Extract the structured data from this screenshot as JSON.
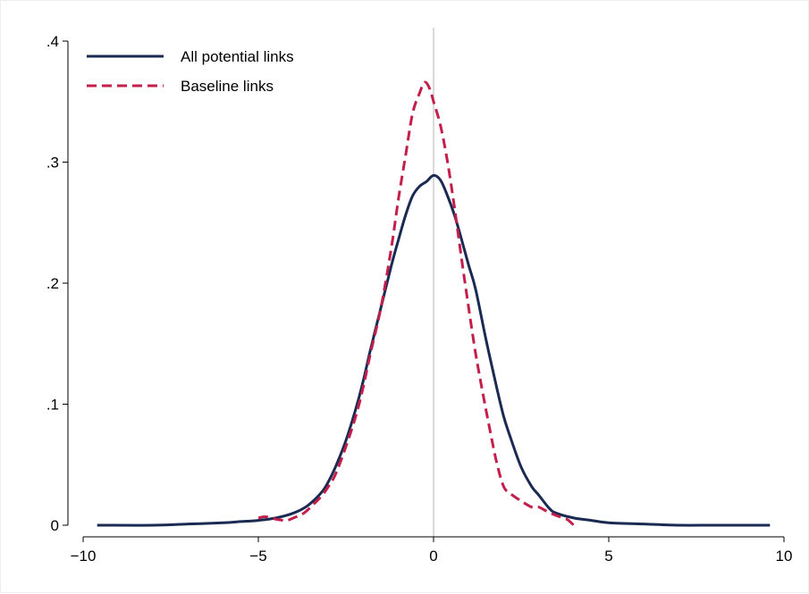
{
  "chart_data": {
    "type": "line",
    "title": "",
    "xlabel": "",
    "ylabel": "",
    "xlim": [
      -10,
      10
    ],
    "ylim": [
      0,
      0.4
    ],
    "x_ticks": [
      {
        "value": -10,
        "label": "−10"
      },
      {
        "value": -5,
        "label": "−5"
      },
      {
        "value": 0,
        "label": "0"
      },
      {
        "value": 5,
        "label": "5"
      },
      {
        "value": 10,
        "label": "10"
      }
    ],
    "y_ticks": [
      {
        "value": 0,
        "label": "0"
      },
      {
        "value": 0.1,
        "label": ".1"
      },
      {
        "value": 0.2,
        "label": ".2"
      },
      {
        "value": 0.3,
        "label": ".3"
      },
      {
        "value": 0.4,
        "label": ".4"
      }
    ],
    "reference_line_x": 0,
    "grid": false,
    "legend_position": "top-left",
    "series": [
      {
        "name": "All potential links",
        "color": "#1a2a52",
        "style": "solid",
        "x": [
          -9.6,
          -8,
          -7,
          -6,
          -5.5,
          -5,
          -4.5,
          -4,
          -3.6,
          -3.2,
          -3.0,
          -2.8,
          -2.5,
          -2.2,
          -2.0,
          -1.8,
          -1.5,
          -1.2,
          -1.0,
          -0.8,
          -0.6,
          -0.4,
          -0.2,
          0,
          0.2,
          0.4,
          0.6,
          0.8,
          1.0,
          1.2,
          1.5,
          1.8,
          2.0,
          2.2,
          2.5,
          2.8,
          3.0,
          3.3,
          3.5,
          4.0,
          4.5,
          5,
          6,
          7,
          8,
          9.6
        ],
        "y": [
          0.0,
          0.0,
          0.001,
          0.002,
          0.003,
          0.004,
          0.006,
          0.01,
          0.016,
          0.027,
          0.036,
          0.048,
          0.07,
          0.098,
          0.12,
          0.145,
          0.18,
          0.215,
          0.236,
          0.256,
          0.272,
          0.28,
          0.284,
          0.289,
          0.285,
          0.272,
          0.256,
          0.236,
          0.215,
          0.195,
          0.153,
          0.114,
          0.09,
          0.072,
          0.048,
          0.032,
          0.025,
          0.014,
          0.01,
          0.006,
          0.004,
          0.002,
          0.001,
          0.0,
          0.0,
          0.0
        ]
      },
      {
        "name": "Baseline links",
        "color": "#c41e4a",
        "style": "dashed",
        "x": [
          -5.0,
          -4.8,
          -4.5,
          -4.2,
          -4.0,
          -3.7,
          -3.4,
          -3.2,
          -3.0,
          -2.8,
          -2.5,
          -2.2,
          -2.0,
          -1.8,
          -1.5,
          -1.2,
          -1.0,
          -0.8,
          -0.6,
          -0.4,
          -0.25,
          -0.1,
          0,
          0.2,
          0.4,
          0.6,
          0.8,
          1.0,
          1.2,
          1.4,
          1.6,
          1.8,
          2.0,
          2.2,
          2.5,
          2.8,
          3.0,
          3.2,
          3.5,
          3.8,
          4.0
        ],
        "y": [
          0.006,
          0.007,
          0.005,
          0.004,
          0.006,
          0.01,
          0.018,
          0.024,
          0.032,
          0.042,
          0.065,
          0.092,
          0.115,
          0.142,
          0.18,
          0.23,
          0.27,
          0.305,
          0.34,
          0.357,
          0.366,
          0.36,
          0.35,
          0.33,
          0.3,
          0.262,
          0.22,
          0.18,
          0.142,
          0.11,
          0.08,
          0.052,
          0.032,
          0.026,
          0.02,
          0.015,
          0.015,
          0.012,
          0.008,
          0.005,
          0.0
        ]
      }
    ]
  }
}
